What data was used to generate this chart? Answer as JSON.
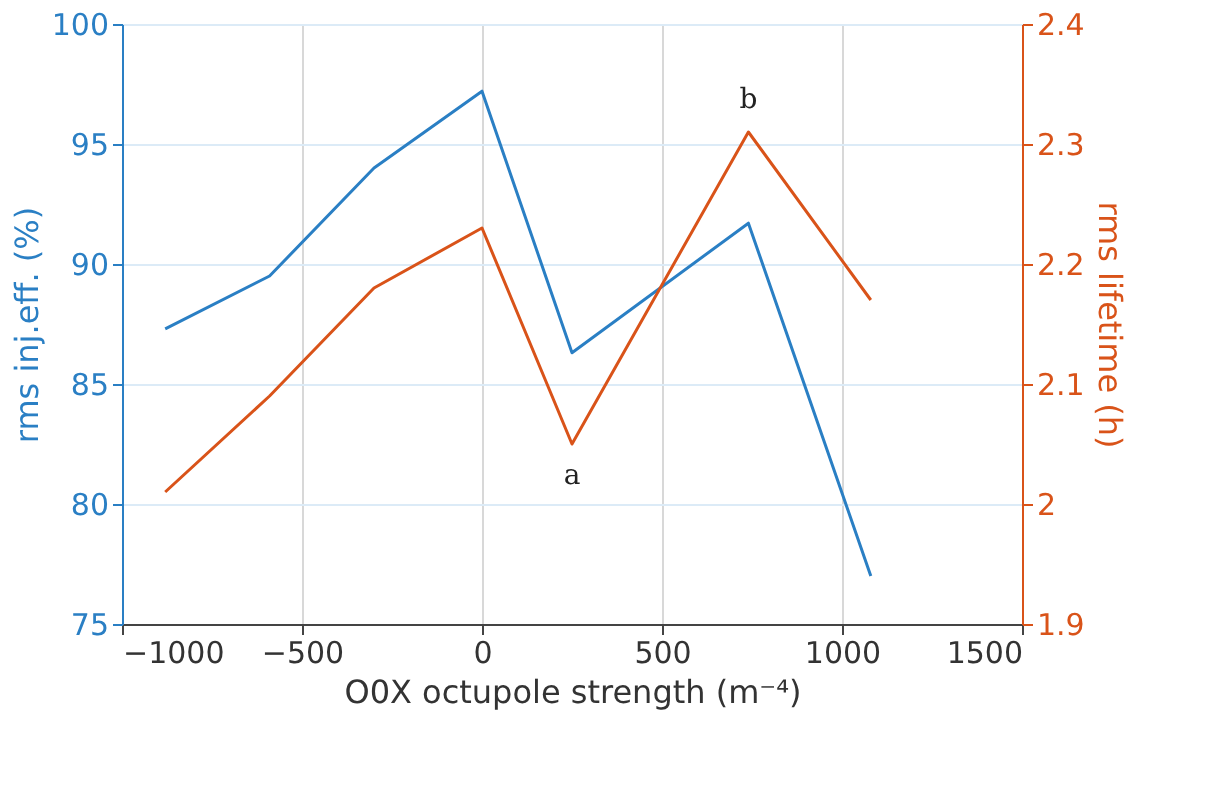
{
  "chart_data": {
    "type": "line",
    "xlabel": "O0X octupole strength (m⁻⁴)",
    "ylabel": "rms inj.eff. (%)",
    "y2label": "rms lifetime (h)",
    "x": [
      -880,
      -590,
      -300,
      0,
      250,
      740,
      1080
    ],
    "series": [
      {
        "color": "#2a7fc4",
        "values": [
          87.3,
          89.5,
          94.0,
          97.2,
          86.3,
          91.7,
          77.0
        ]
      },
      {
        "color": "#d95319",
        "axis": "y2",
        "values": [
          2.01,
          2.09,
          2.18,
          2.23,
          2.05,
          2.31,
          2.17
        ]
      }
    ],
    "xlim": [
      -1000,
      1500
    ],
    "xticks": [
      -1000,
      -500,
      0,
      500,
      1000,
      1500
    ],
    "ylim": [
      75,
      100
    ],
    "yticks": [
      75,
      80,
      85,
      90,
      95,
      100
    ],
    "y2lim": [
      1.9,
      2.4
    ],
    "y2ticks": [
      1.9,
      2,
      2.1,
      2.2,
      2.3,
      2.4
    ],
    "annotations": [
      {
        "text": "a",
        "x": 250,
        "y": 82.5
      },
      {
        "text": "b",
        "x": 740,
        "y": 95.5
      }
    ],
    "grid": true,
    "marker": "none",
    "line_style": "solid"
  }
}
